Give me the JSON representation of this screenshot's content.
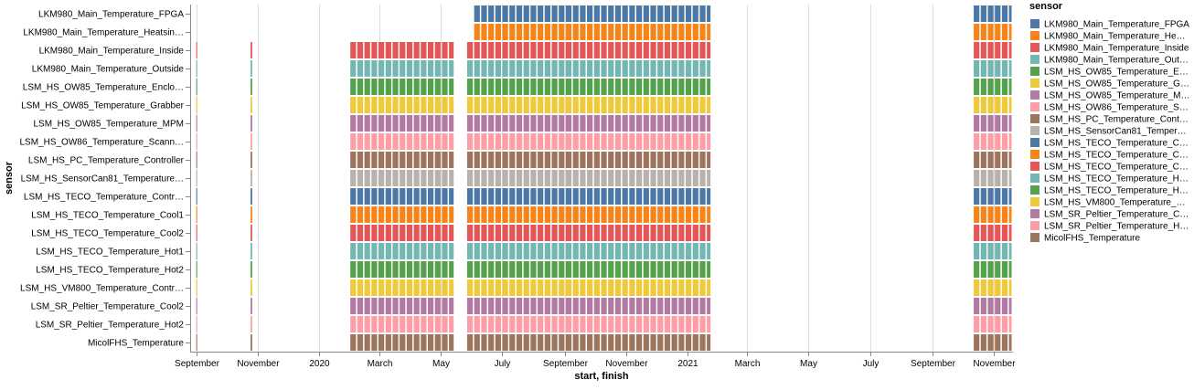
{
  "chart_data": {
    "type": "gantt",
    "xlabel": "start, finish",
    "ylabel": "sensor",
    "legend_title": "sensor",
    "legend_position": "right",
    "grid": true,
    "x_domain": [
      "2019-08-26",
      "2021-11-20"
    ],
    "x_ticks": [
      {
        "date": "2019-09-01",
        "label": "September"
      },
      {
        "date": "2019-11-01",
        "label": "November"
      },
      {
        "date": "2020-01-01",
        "label": "2020"
      },
      {
        "date": "2020-03-01",
        "label": "March"
      },
      {
        "date": "2020-05-01",
        "label": "May"
      },
      {
        "date": "2020-07-01",
        "label": "July"
      },
      {
        "date": "2020-09-01",
        "label": "September"
      },
      {
        "date": "2020-11-01",
        "label": "November"
      },
      {
        "date": "2021-01-01",
        "label": "2021"
      },
      {
        "date": "2021-03-01",
        "label": "March"
      },
      {
        "date": "2021-05-01",
        "label": "May"
      },
      {
        "date": "2021-07-01",
        "label": "July"
      },
      {
        "date": "2021-09-01",
        "label": "September"
      },
      {
        "date": "2021-11-01",
        "label": "November"
      }
    ],
    "sensors": [
      {
        "label": "LKM980_Main_Temperature_FPGA",
        "legend": "LKM980_Main_Temperature_FPGA",
        "color": "#4c78a8",
        "intervals": [
          [
            "2020-06-03",
            "2021-01-25"
          ],
          [
            "2021-10-12",
            "2021-11-20"
          ]
        ]
      },
      {
        "label": "LKM980_Main_Temperature_Heatsin…",
        "legend": "LKM980_Main_Temperature_He…",
        "color": "#f58518",
        "intervals": [
          [
            "2020-06-03",
            "2021-01-25"
          ],
          [
            "2021-10-12",
            "2021-11-20"
          ]
        ]
      },
      {
        "label": "LKM980_Main_Temperature_Inside",
        "legend": "LKM980_Main_Temperature_Inside",
        "color": "#e45756",
        "intervals": [
          [
            "2019-09-01",
            "2019-09-03"
          ],
          [
            "2019-10-25",
            "2019-10-28"
          ],
          [
            "2020-02-01",
            "2020-05-15"
          ],
          [
            "2020-05-27",
            "2021-01-25"
          ],
          [
            "2021-10-12",
            "2021-11-20"
          ]
        ]
      },
      {
        "label": "LKM980_Main_Temperature_Outside",
        "legend": "LKM980_Main_Temperature_Out…",
        "color": "#72b7b2",
        "intervals": [
          [
            "2019-09-01",
            "2019-09-03"
          ],
          [
            "2019-10-25",
            "2019-10-28"
          ],
          [
            "2020-02-01",
            "2020-05-15"
          ],
          [
            "2020-05-27",
            "2021-01-25"
          ],
          [
            "2021-10-12",
            "2021-11-20"
          ]
        ]
      },
      {
        "label": "LSM_HS_OW85_Temperature_Enclo…",
        "legend": "LSM_HS_OW85_Temperature_E…",
        "color": "#54a24b",
        "intervals": [
          [
            "2019-09-01",
            "2019-09-03"
          ],
          [
            "2019-10-25",
            "2019-10-28"
          ],
          [
            "2020-02-01",
            "2020-05-15"
          ],
          [
            "2020-05-27",
            "2021-01-25"
          ],
          [
            "2021-10-12",
            "2021-11-20"
          ]
        ]
      },
      {
        "label": "LSM_HS_OW85_Temperature_Grabber",
        "legend": "LSM_HS_OW85_Temperature_G…",
        "color": "#eeca3b",
        "intervals": [
          [
            "2019-09-01",
            "2019-09-03"
          ],
          [
            "2019-10-25",
            "2019-10-28"
          ],
          [
            "2020-02-01",
            "2020-05-15"
          ],
          [
            "2020-05-27",
            "2021-01-25"
          ],
          [
            "2021-10-12",
            "2021-11-20"
          ]
        ]
      },
      {
        "label": "LSM_HS_OW85_Temperature_MPM",
        "legend": "LSM_HS_OW85_Temperature_M…",
        "color": "#b279a2",
        "intervals": [
          [
            "2019-09-01",
            "2019-09-03"
          ],
          [
            "2019-10-25",
            "2019-10-28"
          ],
          [
            "2020-02-01",
            "2020-05-15"
          ],
          [
            "2020-05-27",
            "2021-01-25"
          ],
          [
            "2021-10-12",
            "2021-11-20"
          ]
        ]
      },
      {
        "label": "LSM_HS_OW86_Temperature_Scann…",
        "legend": "LSM_HS_OW86_Temperature_S…",
        "color": "#ff9da6",
        "intervals": [
          [
            "2019-09-01",
            "2019-09-03"
          ],
          [
            "2019-10-25",
            "2019-10-28"
          ],
          [
            "2020-02-01",
            "2020-05-15"
          ],
          [
            "2020-05-27",
            "2021-01-25"
          ],
          [
            "2021-10-12",
            "2021-11-20"
          ]
        ]
      },
      {
        "label": "LSM_HS_PC_Temperature_Controller",
        "legend": "LSM_HS_PC_Temperature_Cont…",
        "color": "#9d755d",
        "intervals": [
          [
            "2019-09-01",
            "2019-09-03"
          ],
          [
            "2019-10-25",
            "2019-10-28"
          ],
          [
            "2020-02-01",
            "2020-05-15"
          ],
          [
            "2020-05-27",
            "2021-01-25"
          ],
          [
            "2021-10-12",
            "2021-11-20"
          ]
        ]
      },
      {
        "label": "LSM_HS_SensorCan81_Temperature…",
        "legend": "LSM_HS_SensorCan81_Temper…",
        "color": "#bab0ac",
        "intervals": [
          [
            "2019-09-01",
            "2019-09-03"
          ],
          [
            "2019-10-25",
            "2019-10-28"
          ],
          [
            "2020-02-01",
            "2020-05-15"
          ],
          [
            "2020-05-27",
            "2021-01-25"
          ],
          [
            "2021-10-12",
            "2021-11-20"
          ]
        ]
      },
      {
        "label": "LSM_HS_TECO_Temperature_Contr…",
        "legend": "LSM_HS_TECO_Temperature_C…",
        "color": "#4c78a8",
        "intervals": [
          [
            "2019-09-01",
            "2019-09-03"
          ],
          [
            "2019-10-25",
            "2019-10-28"
          ],
          [
            "2020-02-01",
            "2020-05-15"
          ],
          [
            "2020-05-27",
            "2021-01-25"
          ],
          [
            "2021-10-12",
            "2021-11-20"
          ]
        ]
      },
      {
        "label": "LSM_HS_TECO_Temperature_Cool1",
        "legend": "LSM_HS_TECO_Temperature_C…",
        "color": "#f58518",
        "intervals": [
          [
            "2019-09-01",
            "2019-09-03"
          ],
          [
            "2019-10-25",
            "2019-10-28"
          ],
          [
            "2020-02-01",
            "2020-05-15"
          ],
          [
            "2020-05-27",
            "2021-01-25"
          ],
          [
            "2021-10-12",
            "2021-11-20"
          ]
        ]
      },
      {
        "label": "LSM_HS_TECO_Temperature_Cool2",
        "legend": "LSM_HS_TECO_Temperature_C…",
        "color": "#e45756",
        "intervals": [
          [
            "2019-09-01",
            "2019-09-03"
          ],
          [
            "2019-10-25",
            "2019-10-28"
          ],
          [
            "2020-02-01",
            "2020-05-15"
          ],
          [
            "2020-05-27",
            "2021-01-25"
          ],
          [
            "2021-10-12",
            "2021-11-20"
          ]
        ]
      },
      {
        "label": "LSM_HS_TECO_Temperature_Hot1",
        "legend": "LSM_HS_TECO_Temperature_H…",
        "color": "#72b7b2",
        "intervals": [
          [
            "2019-09-01",
            "2019-09-03"
          ],
          [
            "2019-10-25",
            "2019-10-28"
          ],
          [
            "2020-02-01",
            "2020-05-15"
          ],
          [
            "2020-05-27",
            "2021-01-25"
          ],
          [
            "2021-10-12",
            "2021-11-20"
          ]
        ]
      },
      {
        "label": "LSM_HS_TECO_Temperature_Hot2",
        "legend": "LSM_HS_TECO_Temperature_H…",
        "color": "#54a24b",
        "intervals": [
          [
            "2019-09-01",
            "2019-09-03"
          ],
          [
            "2019-10-25",
            "2019-10-28"
          ],
          [
            "2020-02-01",
            "2020-05-15"
          ],
          [
            "2020-05-27",
            "2021-01-25"
          ],
          [
            "2021-10-12",
            "2021-11-20"
          ]
        ]
      },
      {
        "label": "LSM_HS_VM800_Temperature_Contr…",
        "legend": "LSM_HS_VM800_Temperature_…",
        "color": "#eeca3b",
        "intervals": [
          [
            "2019-09-01",
            "2019-09-03"
          ],
          [
            "2019-10-25",
            "2019-10-28"
          ],
          [
            "2020-02-01",
            "2020-05-15"
          ],
          [
            "2020-05-27",
            "2021-01-25"
          ],
          [
            "2021-10-12",
            "2021-11-20"
          ]
        ]
      },
      {
        "label": "LSM_SR_Peltier_Temperature_Cool2",
        "legend": "LSM_SR_Peltier_Temperature_C…",
        "color": "#b279a2",
        "intervals": [
          [
            "2019-09-01",
            "2019-09-03"
          ],
          [
            "2019-10-25",
            "2019-10-28"
          ],
          [
            "2020-02-01",
            "2020-05-15"
          ],
          [
            "2020-05-27",
            "2021-01-25"
          ],
          [
            "2021-10-12",
            "2021-11-20"
          ]
        ]
      },
      {
        "label": "LSM_SR_Peltier_Temperature_Hot2",
        "legend": "LSM_SR_Peltier_Temperature_H…",
        "color": "#ff9da6",
        "intervals": [
          [
            "2019-09-01",
            "2019-09-03"
          ],
          [
            "2019-10-25",
            "2019-10-28"
          ],
          [
            "2020-02-01",
            "2020-05-15"
          ],
          [
            "2020-05-27",
            "2021-01-25"
          ],
          [
            "2021-10-12",
            "2021-11-20"
          ]
        ]
      },
      {
        "label": "MicolFHS_Temperature",
        "legend": "MicolFHS_Temperature",
        "color": "#9d755d",
        "intervals": [
          [
            "2019-09-01",
            "2019-09-03"
          ],
          [
            "2019-10-25",
            "2019-10-28"
          ],
          [
            "2020-02-01",
            "2020-05-15"
          ],
          [
            "2020-05-27",
            "2021-01-25"
          ],
          [
            "2021-10-12",
            "2021-11-20"
          ]
        ]
      }
    ]
  }
}
